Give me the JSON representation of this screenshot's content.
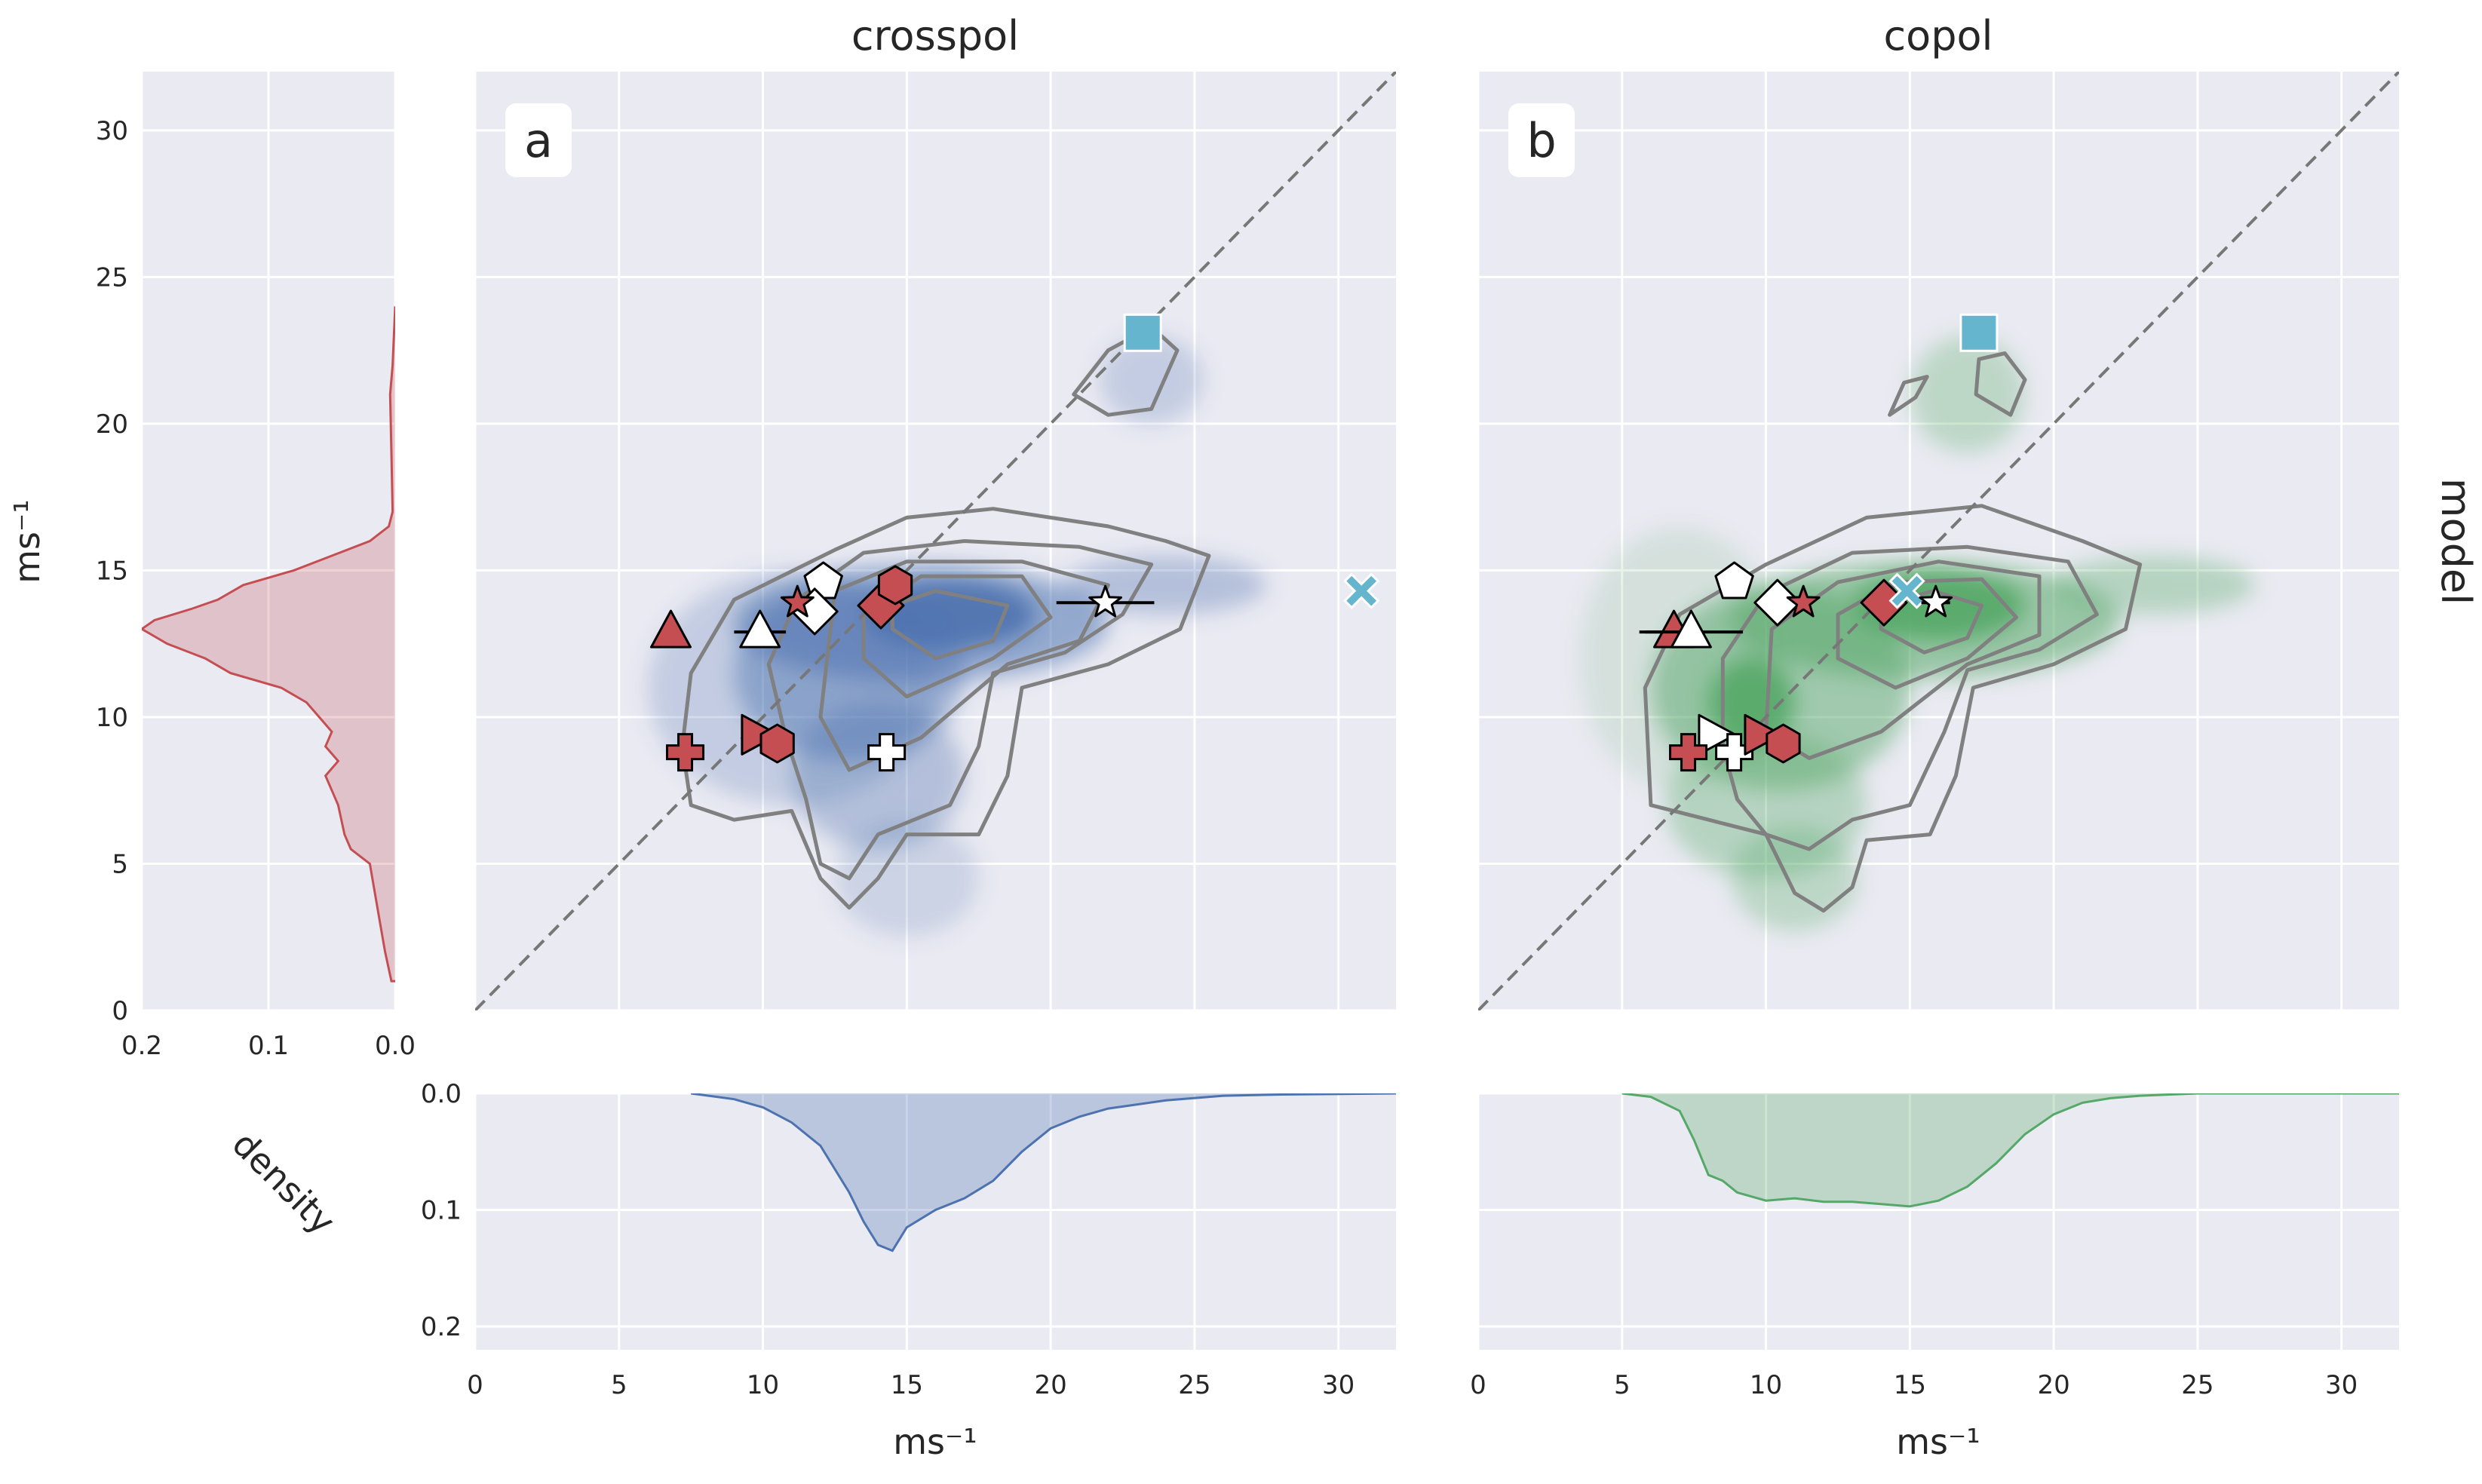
{
  "figure": {
    "titles": {
      "left": "crosspol",
      "right": "copol"
    },
    "row_label": "model",
    "y_axis_label": "ms⁻¹",
    "x_axis_label_left": "ms⁻¹",
    "x_axis_label_right": "ms⁻¹",
    "density_label": "density",
    "panel_letters": [
      "a",
      "b"
    ],
    "colors": {
      "background": "#eaeaf2",
      "grid": "#ffffff",
      "crosspol_hist": "#4c72b0",
      "copol_hist": "#55a868",
      "model_density": "#c44e52",
      "contour": "#808080",
      "marker_red": "#c44e52",
      "marker_white": "#ffffff",
      "marker_cyan": "#64b5cd",
      "diagonal": "#777777"
    }
  },
  "chart_data": [
    {
      "id": "model_density",
      "type": "area",
      "orientation": "horizontal",
      "xlabel": "density",
      "ylabel": "ms⁻¹",
      "xlim": [
        0.2,
        0.0
      ],
      "ylim": [
        0,
        32
      ],
      "x_ticks": [
        0.2,
        0.1,
        0.0
      ],
      "y_ticks": [
        0,
        5,
        10,
        15,
        20,
        25,
        30
      ],
      "y": [
        1,
        2,
        3,
        4,
        5,
        5.5,
        6,
        7,
        7.5,
        8,
        8.5,
        9,
        9.5,
        10,
        10.5,
        11,
        11.5,
        12,
        12.5,
        13,
        13.3,
        13.7,
        14,
        14.5,
        15,
        15.5,
        16,
        16.5,
        17,
        19,
        21,
        22,
        24
      ],
      "density": [
        0.003,
        0.008,
        0.012,
        0.016,
        0.02,
        0.035,
        0.04,
        0.045,
        0.05,
        0.055,
        0.045,
        0.055,
        0.05,
        0.06,
        0.07,
        0.09,
        0.13,
        0.15,
        0.18,
        0.2,
        0.19,
        0.16,
        0.14,
        0.12,
        0.08,
        0.05,
        0.02,
        0.005,
        0.002,
        0.003,
        0.004,
        0.002,
        0.0
      ],
      "grid": true
    },
    {
      "id": "crosspol_scatter",
      "type": "scatter",
      "title": "crosspol",
      "panel": "a",
      "xlim": [
        0,
        32
      ],
      "ylim": [
        0,
        32
      ],
      "x_ticks": [
        0,
        5,
        10,
        15,
        20,
        25,
        30
      ],
      "y_ticks": [
        0,
        5,
        10,
        15,
        20,
        25,
        30
      ],
      "identity_line": true,
      "grid": true,
      "histogram_blobs": [
        {
          "x": 15.5,
          "y": 13.2,
          "rx": 6.5,
          "ry": 2.0,
          "intensity": 0.55
        },
        {
          "x": 13.0,
          "y": 11.5,
          "rx": 4.0,
          "ry": 3.0,
          "intensity": 0.45
        },
        {
          "x": 14.0,
          "y": 8.0,
          "rx": 3.0,
          "ry": 2.5,
          "intensity": 0.35
        },
        {
          "x": 16.5,
          "y": 13.5,
          "rx": 3.0,
          "ry": 1.2,
          "intensity": 0.9
        },
        {
          "x": 11.0,
          "y": 11.0,
          "rx": 5.0,
          "ry": 4.0,
          "intensity": 0.25
        },
        {
          "x": 24.0,
          "y": 14.5,
          "rx": 3.5,
          "ry": 1.0,
          "intensity": 0.35
        },
        {
          "x": 23.5,
          "y": 21.5,
          "rx": 1.8,
          "ry": 1.5,
          "intensity": 0.25
        },
        {
          "x": 15.0,
          "y": 4.5,
          "rx": 2.5,
          "ry": 2.0,
          "intensity": 0.2
        }
      ],
      "contours": [
        [
          [
            7.5,
            7
          ],
          [
            9,
            6.5
          ],
          [
            11,
            6.8
          ],
          [
            12,
            4.5
          ],
          [
            13,
            3.5
          ],
          [
            14,
            4.5
          ],
          [
            15,
            6
          ],
          [
            17.5,
            6
          ],
          [
            18.5,
            8
          ],
          [
            19,
            11
          ],
          [
            22,
            11.8
          ],
          [
            24.5,
            13
          ],
          [
            25.5,
            15.5
          ],
          [
            24,
            16
          ],
          [
            22,
            16.5
          ],
          [
            18,
            17.1
          ],
          [
            15,
            16.8
          ],
          [
            12.5,
            15.7
          ],
          [
            9,
            14
          ],
          [
            7.5,
            11.5
          ],
          [
            7.2,
            9
          ],
          [
            7.5,
            7
          ]
        ],
        [
          [
            11.5,
            7.2
          ],
          [
            12,
            5
          ],
          [
            13,
            4.5
          ],
          [
            14,
            6
          ],
          [
            16.5,
            7
          ],
          [
            17.5,
            9
          ],
          [
            18,
            11.5
          ],
          [
            20.5,
            12.2
          ],
          [
            22.5,
            13.5
          ],
          [
            23.5,
            15.2
          ],
          [
            21,
            15.8
          ],
          [
            17,
            16
          ],
          [
            13.5,
            15.6
          ],
          [
            11.2,
            14
          ],
          [
            10.2,
            11.8
          ],
          [
            10.8,
            9.3
          ],
          [
            11.5,
            7.2
          ]
        ],
        [
          [
            12,
            10
          ],
          [
            13,
            8.2
          ],
          [
            15.5,
            9.3
          ],
          [
            18.5,
            11.8
          ],
          [
            21,
            12.6
          ],
          [
            22,
            14.5
          ],
          [
            19,
            15.3
          ],
          [
            15,
            15.3
          ],
          [
            12.5,
            14.3
          ],
          [
            12,
            10
          ]
        ],
        [
          [
            13.5,
            12
          ],
          [
            15,
            10.7
          ],
          [
            18,
            12
          ],
          [
            20,
            13.4
          ],
          [
            19,
            14.8
          ],
          [
            15.5,
            14.8
          ],
          [
            13.5,
            13.5
          ],
          [
            13.5,
            12
          ]
        ],
        [
          [
            14.5,
            13
          ],
          [
            16,
            12
          ],
          [
            18,
            12.6
          ],
          [
            18.5,
            13.8
          ],
          [
            16,
            14.3
          ],
          [
            14.5,
            13.8
          ],
          [
            14.5,
            13
          ]
        ],
        [
          [
            20.8,
            21
          ],
          [
            22,
            20.3
          ],
          [
            23.5,
            20.5
          ],
          [
            24.4,
            22.5
          ],
          [
            23.5,
            23.3
          ],
          [
            22,
            22.5
          ],
          [
            20.8,
            21
          ]
        ]
      ],
      "markers": [
        {
          "shape": "square",
          "color": "cyan",
          "x": 23.2,
          "y": 23.1
        },
        {
          "shape": "x",
          "color": "cyan",
          "x": 30.8,
          "y": 14.3
        },
        {
          "shape": "triangle",
          "color": "red",
          "x": 6.8,
          "y": 12.9
        },
        {
          "shape": "triangle",
          "color": "white",
          "x": 9.9,
          "y": 12.9,
          "xerr": 0.9
        },
        {
          "shape": "pentagon",
          "color": "white",
          "x": 12.1,
          "y": 14.6
        },
        {
          "shape": "diamond",
          "color": "white",
          "x": 11.8,
          "y": 13.6
        },
        {
          "shape": "star",
          "color": "red",
          "x": 11.2,
          "y": 13.9
        },
        {
          "shape": "diamond",
          "color": "red",
          "x": 14.1,
          "y": 13.8
        },
        {
          "shape": "hexagon",
          "color": "red",
          "x": 14.6,
          "y": 14.5
        },
        {
          "shape": "star",
          "color": "white",
          "x": 21.9,
          "y": 13.9,
          "xerr": 1.7
        },
        {
          "shape": "plus",
          "color": "red",
          "x": 7.3,
          "y": 8.8
        },
        {
          "shape": "triangle-right",
          "color": "red",
          "x": 9.8,
          "y": 9.4
        },
        {
          "shape": "hexagon",
          "color": "red",
          "x": 10.5,
          "y": 9.1
        },
        {
          "shape": "plus",
          "color": "white",
          "x": 14.3,
          "y": 8.8
        }
      ]
    },
    {
      "id": "copol_scatter",
      "type": "scatter",
      "title": "copol",
      "panel": "b",
      "xlim": [
        0,
        32
      ],
      "ylim": [
        0,
        32
      ],
      "x_ticks": [
        0,
        5,
        10,
        15,
        20,
        25,
        30
      ],
      "y_ticks": [
        0,
        5,
        10,
        15,
        20,
        25,
        30
      ],
      "identity_line": true,
      "grid": true,
      "histogram_blobs": [
        {
          "x": 15.5,
          "y": 13.3,
          "rx": 6.8,
          "ry": 2.0,
          "intensity": 0.55
        },
        {
          "x": 10.5,
          "y": 11.0,
          "rx": 4.5,
          "ry": 3.5,
          "intensity": 0.5
        },
        {
          "x": 10.0,
          "y": 7.0,
          "rx": 3.5,
          "ry": 2.5,
          "intensity": 0.35
        },
        {
          "x": 16.0,
          "y": 13.8,
          "rx": 3.0,
          "ry": 1.2,
          "intensity": 0.9
        },
        {
          "x": 9.5,
          "y": 10.5,
          "rx": 1.5,
          "ry": 1.5,
          "intensity": 0.9
        },
        {
          "x": 11.0,
          "y": 4.5,
          "rx": 2.2,
          "ry": 1.8,
          "intensity": 0.3
        },
        {
          "x": 7.0,
          "y": 12.0,
          "rx": 3.5,
          "ry": 4.5,
          "intensity": 0.15
        },
        {
          "x": 17.0,
          "y": 21.0,
          "rx": 2.0,
          "ry": 2.0,
          "intensity": 0.3
        },
        {
          "x": 23.5,
          "y": 14.5,
          "rx": 3.5,
          "ry": 1.0,
          "intensity": 0.35
        }
      ],
      "contours": [
        [
          [
            6,
            7
          ],
          [
            8,
            6.5
          ],
          [
            10,
            6
          ],
          [
            11,
            4
          ],
          [
            12,
            3.4
          ],
          [
            13,
            4.2
          ],
          [
            13.5,
            5.8
          ],
          [
            15.7,
            6
          ],
          [
            16.6,
            8
          ],
          [
            17.2,
            11
          ],
          [
            20,
            11.8
          ],
          [
            22.5,
            13
          ],
          [
            23,
            15.2
          ],
          [
            21,
            16
          ],
          [
            17.5,
            17.2
          ],
          [
            13.5,
            16.8
          ],
          [
            10,
            15.2
          ],
          [
            7,
            13.5
          ],
          [
            5.8,
            11
          ],
          [
            6,
            7
          ]
        ],
        [
          [
            9,
            7.2
          ],
          [
            10,
            6
          ],
          [
            11.5,
            5.5
          ],
          [
            13,
            6.5
          ],
          [
            15,
            7
          ],
          [
            16.2,
            9.5
          ],
          [
            17,
            11.6
          ],
          [
            19.5,
            12.3
          ],
          [
            21.5,
            13.5
          ],
          [
            20.5,
            15.3
          ],
          [
            17,
            15.8
          ],
          [
            13,
            15.6
          ],
          [
            10,
            14.2
          ],
          [
            8.5,
            12
          ],
          [
            8.5,
            9
          ],
          [
            9,
            7.2
          ]
        ],
        [
          [
            10,
            9.5
          ],
          [
            11.5,
            8.6
          ],
          [
            14,
            9.5
          ],
          [
            17,
            11.8
          ],
          [
            19.5,
            12.8
          ],
          [
            19.5,
            14.8
          ],
          [
            16,
            15.3
          ],
          [
            12.5,
            14.6
          ],
          [
            10.2,
            13
          ],
          [
            10,
            9.5
          ]
        ],
        [
          [
            12.5,
            12
          ],
          [
            14.5,
            11
          ],
          [
            17,
            12
          ],
          [
            18.7,
            13.4
          ],
          [
            17.5,
            14.7
          ],
          [
            14.5,
            14.6
          ],
          [
            12.5,
            13.5
          ],
          [
            12.5,
            12
          ]
        ],
        [
          [
            14,
            13
          ],
          [
            15.5,
            12.2
          ],
          [
            17,
            12.7
          ],
          [
            17.5,
            13.8
          ],
          [
            15.8,
            14.3
          ],
          [
            14,
            13.8
          ],
          [
            14,
            13
          ]
        ],
        [
          [
            14.3,
            20.3
          ],
          [
            15.2,
            20.9
          ],
          [
            15.6,
            21.6
          ],
          [
            14.8,
            21.4
          ],
          [
            14.3,
            20.3
          ]
        ],
        [
          [
            17.3,
            21
          ],
          [
            18.5,
            20.3
          ],
          [
            19,
            21.5
          ],
          [
            18.3,
            22.4
          ],
          [
            17.4,
            22.2
          ],
          [
            17.3,
            21
          ]
        ]
      ],
      "markers": [
        {
          "shape": "square",
          "color": "cyan",
          "x": 17.4,
          "y": 23.1
        },
        {
          "shape": "triangle",
          "color": "red",
          "x": 6.8,
          "y": 12.9,
          "xerr": 1.0
        },
        {
          "shape": "triangle",
          "color": "white",
          "x": 7.4,
          "y": 12.9,
          "xerr": 1.8
        },
        {
          "shape": "pentagon",
          "color": "white",
          "x": 8.9,
          "y": 14.6
        },
        {
          "shape": "diamond",
          "color": "white",
          "x": 10.4,
          "y": 13.9
        },
        {
          "shape": "star",
          "color": "red",
          "x": 11.3,
          "y": 13.9
        },
        {
          "shape": "diamond",
          "color": "red",
          "x": 14.1,
          "y": 13.9
        },
        {
          "shape": "x",
          "color": "cyan",
          "x": 14.9,
          "y": 14.3
        },
        {
          "shape": "star",
          "color": "white",
          "x": 15.9,
          "y": 13.9,
          "xerr": 0.5
        },
        {
          "shape": "triangle-right",
          "color": "white",
          "x": 8.2,
          "y": 9.4
        },
        {
          "shape": "plus",
          "color": "red",
          "x": 7.3,
          "y": 8.8
        },
        {
          "shape": "plus",
          "color": "white",
          "x": 8.9,
          "y": 8.8
        },
        {
          "shape": "triangle-right",
          "color": "red",
          "x": 9.8,
          "y": 9.4
        },
        {
          "shape": "hexagon",
          "color": "red",
          "x": 10.6,
          "y": 9.1
        }
      ]
    },
    {
      "id": "crosspol_density",
      "type": "area",
      "orientation": "vertical-inverted",
      "xlim": [
        0,
        32
      ],
      "ylim": [
        0.0,
        0.22
      ],
      "x_ticks": [
        0,
        5,
        10,
        15,
        20,
        25,
        30
      ],
      "y_ticks": [
        0.0,
        0.1,
        0.2
      ],
      "x": [
        7.5,
        9,
        10,
        11,
        12,
        13,
        13.5,
        14,
        14.5,
        15,
        16,
        17,
        18,
        19,
        20,
        21,
        22,
        24,
        26,
        28,
        32
      ],
      "density": [
        0.0,
        0.005,
        0.012,
        0.025,
        0.045,
        0.085,
        0.11,
        0.13,
        0.135,
        0.115,
        0.1,
        0.09,
        0.075,
        0.05,
        0.03,
        0.02,
        0.013,
        0.006,
        0.002,
        0.001,
        0.0
      ],
      "grid": true
    },
    {
      "id": "copol_density",
      "type": "area",
      "orientation": "vertical-inverted",
      "xlim": [
        0,
        32
      ],
      "ylim": [
        0.0,
        0.22
      ],
      "x_ticks": [
        0,
        5,
        10,
        15,
        20,
        25,
        30
      ],
      "y_ticks": [
        0.0,
        0.1,
        0.2
      ],
      "x": [
        5,
        6,
        7,
        7.5,
        8,
        8.5,
        9,
        10,
        11,
        12,
        13,
        14,
        15,
        16,
        17,
        18,
        19,
        20,
        21,
        22,
        23,
        25,
        32
      ],
      "density": [
        0.0,
        0.003,
        0.015,
        0.04,
        0.07,
        0.075,
        0.085,
        0.092,
        0.09,
        0.093,
        0.093,
        0.095,
        0.097,
        0.092,
        0.08,
        0.06,
        0.035,
        0.018,
        0.008,
        0.004,
        0.002,
        0.0,
        0.0
      ],
      "grid": true
    }
  ]
}
